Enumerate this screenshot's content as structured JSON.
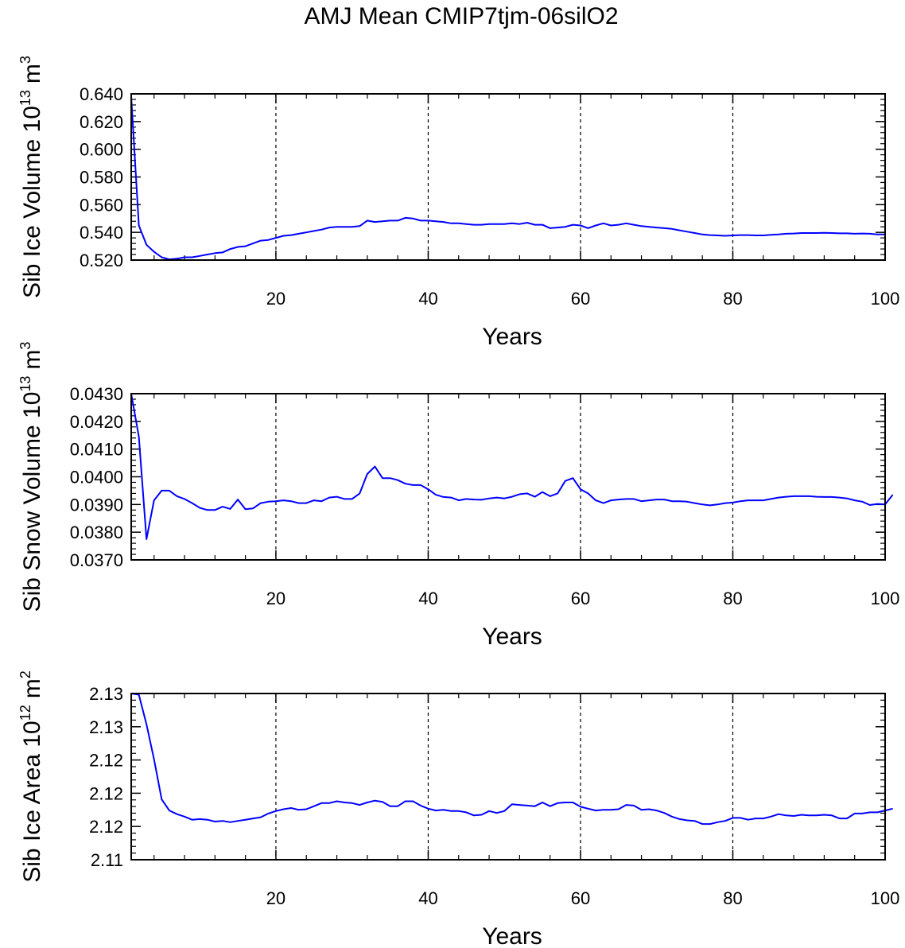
{
  "title": "AMJ Mean CMIP7tjm-06silO2",
  "line_color": "#0000ff",
  "chart_data": [
    {
      "type": "line",
      "ylabel": "Sib Ice Volume 10",
      "ylabel_exp": "13",
      "ylabel_unit": "m",
      "ylabel_unit_exp": "3",
      "xlabel": "Years",
      "xlim": [
        1,
        100
      ],
      "ylim": [
        0.52,
        0.64
      ],
      "xticks": [
        20,
        40,
        60,
        80,
        100
      ],
      "xtick_labels": [
        "20",
        "40",
        "60",
        "80",
        "100"
      ],
      "yticks": [
        0.52,
        0.54,
        0.56,
        0.58,
        0.6,
        0.62,
        0.64
      ],
      "ytick_labels": [
        "0.520",
        "0.540",
        "0.560",
        "0.580",
        "0.600",
        "0.620",
        "0.640"
      ],
      "vgrid": [
        20,
        40,
        60,
        80
      ],
      "series": [
        {
          "values": [
            0.638,
            0.545,
            0.531,
            0.526,
            0.522,
            0.5205,
            0.521,
            0.522,
            0.522,
            0.523,
            0.524,
            0.525,
            0.5255,
            0.528,
            0.5295,
            0.53,
            0.532,
            0.534,
            0.5345,
            0.536,
            0.5375,
            0.538,
            0.539,
            0.54,
            0.541,
            0.542,
            0.5435,
            0.544,
            0.544,
            0.544,
            0.5445,
            0.5485,
            0.5475,
            0.548,
            0.5485,
            0.5485,
            0.5505,
            0.55,
            0.5485,
            0.5485,
            0.548,
            0.5475,
            0.5465,
            0.5465,
            0.546,
            0.5455,
            0.5455,
            0.546,
            0.546,
            0.546,
            0.5465,
            0.546,
            0.547,
            0.5455,
            0.5455,
            0.543,
            0.5435,
            0.544,
            0.5455,
            0.545,
            0.543,
            0.545,
            0.5465,
            0.545,
            0.5455,
            0.5465,
            0.5455,
            0.5445,
            0.544,
            0.5435,
            0.543,
            0.5425,
            0.5415,
            0.5405,
            0.5395,
            0.5385,
            0.538,
            0.5378,
            0.5375,
            0.5378,
            0.538,
            0.538,
            0.5378,
            0.5378,
            0.5382,
            0.5385,
            0.539,
            0.5392,
            0.5395,
            0.5395,
            0.5395,
            0.5397,
            0.5395,
            0.5393,
            0.5393,
            0.539,
            0.5392,
            0.539,
            0.5385,
            0.5385
          ]
        }
      ]
    },
    {
      "type": "line",
      "ylabel": "Sib Snow Volume 10",
      "ylabel_exp": "13",
      "ylabel_unit": "m",
      "ylabel_unit_exp": "3",
      "xlabel": "Years",
      "xlim": [
        1,
        100
      ],
      "ylim": [
        0.037,
        0.043
      ],
      "xticks": [
        20,
        40,
        60,
        80,
        100
      ],
      "xtick_labels": [
        "20",
        "40",
        "60",
        "80",
        "100"
      ],
      "yticks": [
        0.037,
        0.038,
        0.039,
        0.04,
        0.041,
        0.042,
        0.043
      ],
      "ytick_labels": [
        "0.0370",
        "0.0380",
        "0.0390",
        "0.0400",
        "0.0410",
        "0.0420",
        "0.0430"
      ],
      "vgrid": [
        20,
        40,
        60,
        80
      ],
      "series": [
        {
          "values": [
            0.043,
            0.04145,
            0.03775,
            0.03915,
            0.0395,
            0.0395,
            0.0393,
            0.0392,
            0.03905,
            0.03888,
            0.0388,
            0.0388,
            0.03892,
            0.03884,
            0.03918,
            0.03883,
            0.03886,
            0.03905,
            0.0391,
            0.03912,
            0.03915,
            0.03912,
            0.03905,
            0.03905,
            0.03915,
            0.03912,
            0.03925,
            0.03928,
            0.0392,
            0.0392,
            0.0394,
            0.0401,
            0.04037,
            0.03995,
            0.03995,
            0.03988,
            0.03975,
            0.0397,
            0.0397,
            0.03955,
            0.03935,
            0.03927,
            0.03925,
            0.03915,
            0.0392,
            0.03918,
            0.03917,
            0.03922,
            0.03925,
            0.03922,
            0.03928,
            0.03937,
            0.0394,
            0.03928,
            0.03945,
            0.0393,
            0.0394,
            0.03985,
            0.03995,
            0.03955,
            0.0394,
            0.03915,
            0.03905,
            0.03915,
            0.03918,
            0.0392,
            0.0392,
            0.03912,
            0.03915,
            0.03918,
            0.03918,
            0.03912,
            0.03912,
            0.0391,
            0.03905,
            0.039,
            0.03897,
            0.039,
            0.03905,
            0.03907,
            0.03912,
            0.03915,
            0.03915,
            0.03915,
            0.0392,
            0.03925,
            0.03928,
            0.0393,
            0.0393,
            0.0393,
            0.03928,
            0.03927,
            0.03927,
            0.03925,
            0.03922,
            0.03915,
            0.0391,
            0.03898,
            0.03902,
            0.039,
            0.03935
          ]
        }
      ]
    },
    {
      "type": "line",
      "ylabel": "Sib Ice Area 10",
      "ylabel_exp": "12",
      "ylabel_unit": "m",
      "ylabel_unit_exp": "2",
      "xlabel": "Years",
      "xlim": [
        1,
        100
      ],
      "ylim": [
        2.11,
        2.137
      ],
      "xticks": [
        20,
        40,
        60,
        80,
        100
      ],
      "xtick_labels": [
        "20",
        "40",
        "60",
        "80",
        "100"
      ],
      "yticks": [
        2.11,
        2.1154,
        2.1208,
        2.1262,
        2.1316,
        2.137
      ],
      "ytick_labels": [
        "2.11",
        "2.12",
        "2.12",
        "2.12",
        "2.13",
        "2.13"
      ],
      "vgrid": [
        20,
        40,
        60,
        80
      ],
      "series": [
        {
          "values": [
            2.137,
            2.1368,
            2.132,
            2.1263,
            2.1198,
            2.118,
            2.1174,
            2.117,
            2.1165,
            2.1166,
            2.1165,
            2.1162,
            2.1163,
            2.1161,
            2.1163,
            2.1165,
            2.1167,
            2.1169,
            2.1175,
            2.1179,
            2.1182,
            2.1184,
            2.1181,
            2.1182,
            2.1187,
            2.1192,
            2.1192,
            2.1195,
            2.1193,
            2.1192,
            2.1189,
            2.1193,
            2.1196,
            2.1194,
            2.1187,
            2.1187,
            2.1195,
            2.1195,
            2.1188,
            2.1183,
            2.118,
            2.1181,
            2.1179,
            2.1179,
            2.1177,
            2.1172,
            2.1173,
            2.1179,
            2.1176,
            2.1179,
            2.119,
            2.1189,
            2.1188,
            2.1187,
            2.1193,
            2.1187,
            2.1192,
            2.1193,
            2.1193,
            2.1186,
            2.1183,
            2.118,
            2.1181,
            2.1181,
            2.1182,
            2.1189,
            2.1188,
            2.1181,
            2.1182,
            2.118,
            2.1176,
            2.117,
            2.1166,
            2.1164,
            2.1163,
            2.1158,
            2.1158,
            2.1161,
            2.1163,
            2.1168,
            2.1168,
            2.1165,
            2.1167,
            2.1167,
            2.117,
            2.1174,
            2.1172,
            2.1171,
            2.1173,
            2.1172,
            2.1172,
            2.1173,
            2.1172,
            2.1167,
            2.1167,
            2.1175,
            2.1175,
            2.1177,
            2.1177,
            2.118,
            2.1183
          ]
        }
      ]
    }
  ]
}
